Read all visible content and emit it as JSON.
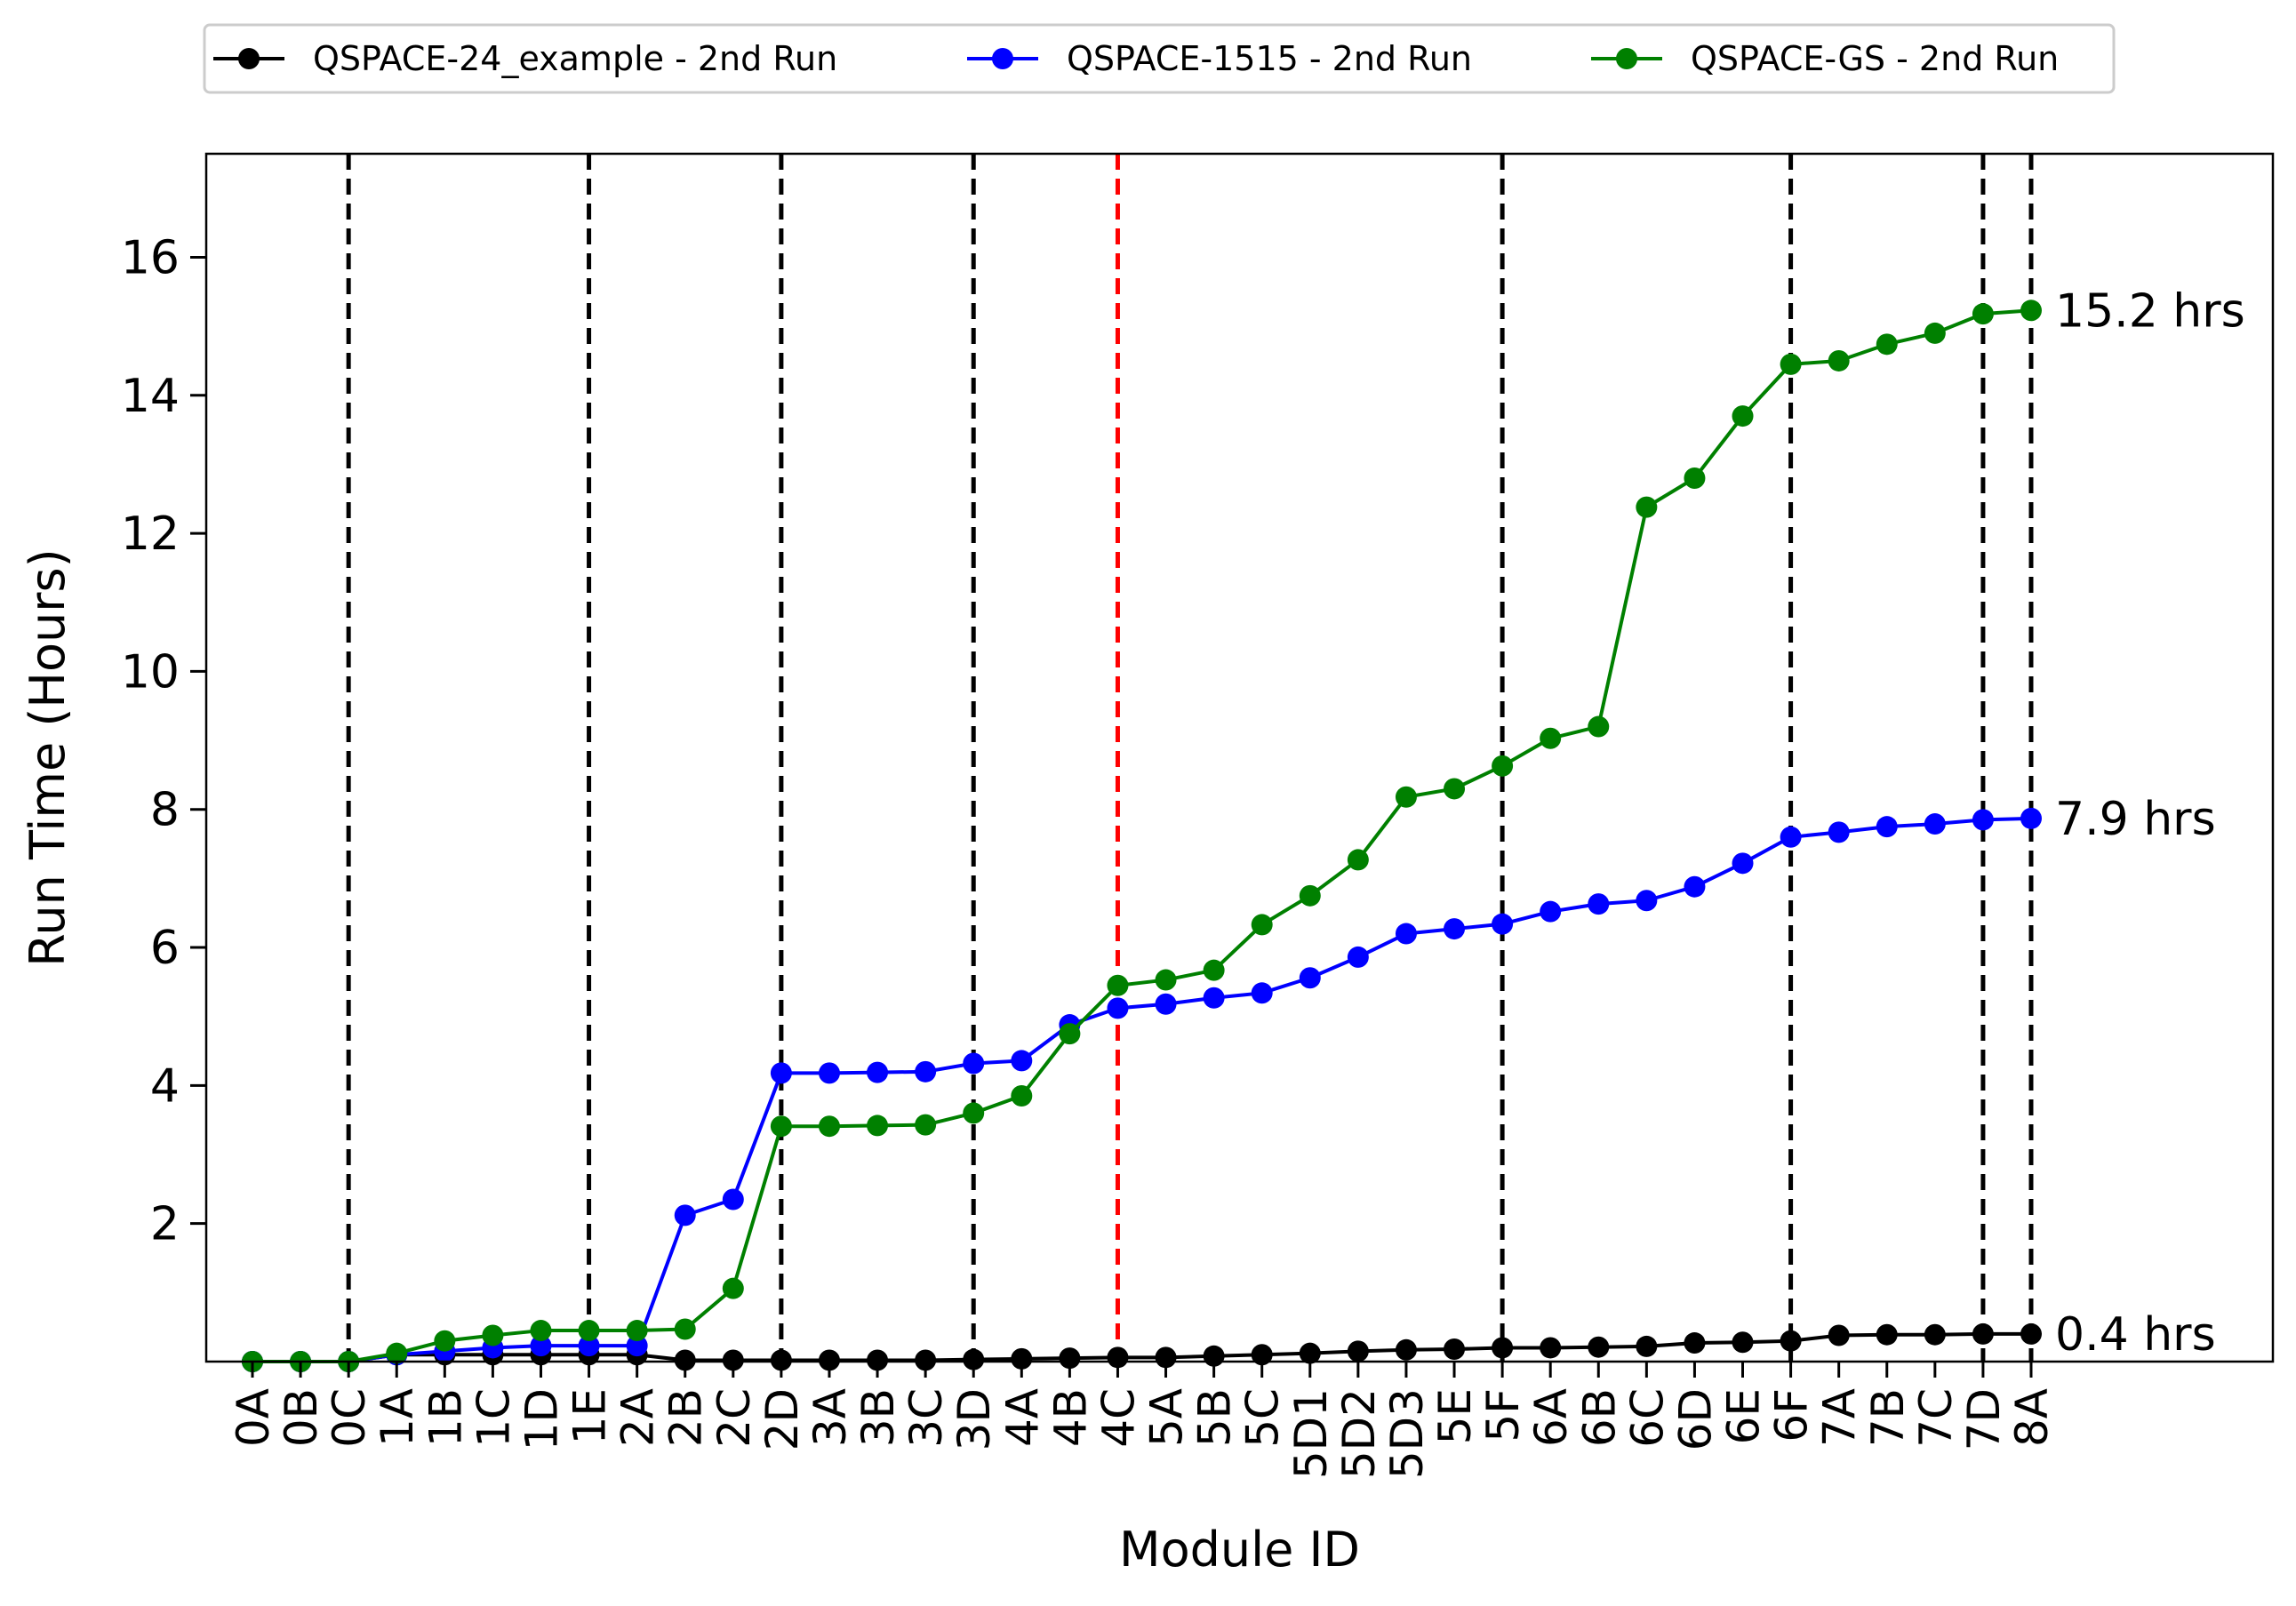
{
  "chart_data": {
    "type": "line",
    "title": "",
    "xlabel": "Module ID",
    "ylabel": "Run Time (Hours)",
    "ylim": [
      0,
      17.5
    ],
    "yticks": [
      2,
      4,
      6,
      8,
      10,
      12,
      14,
      16
    ],
    "grid": false,
    "legend_position": "top",
    "categories": [
      "0A",
      "0B",
      "0C",
      "1A",
      "1B",
      "1C",
      "1D",
      "1E",
      "2A",
      "2B",
      "2C",
      "2D",
      "3A",
      "3B",
      "3C",
      "3D",
      "4A",
      "4B",
      "4C",
      "5A",
      "5B",
      "5C",
      "5D1",
      "5D2",
      "5D3",
      "5E",
      "5F",
      "6A",
      "6B",
      "6C",
      "6D",
      "6E",
      "6F",
      "7A",
      "7B",
      "7C",
      "7D",
      "8A"
    ],
    "series": [
      {
        "name": "QSPACE-24_example - 2nd Run",
        "color": "#000000",
        "values": [
          0,
          0,
          0,
          0.1,
          0.1,
          0.1,
          0.1,
          0.1,
          0.1,
          0.02,
          0.02,
          0.02,
          0.02,
          0.02,
          0.02,
          0.03,
          0.04,
          0.05,
          0.06,
          0.06,
          0.08,
          0.1,
          0.12,
          0.15,
          0.17,
          0.18,
          0.2,
          0.2,
          0.21,
          0.22,
          0.27,
          0.28,
          0.3,
          0.38,
          0.39,
          0.39,
          0.4,
          0.4
        ]
      },
      {
        "name": "QSPACE-1515 - 2nd Run",
        "color": "#0000ff",
        "values": [
          0,
          0,
          0,
          0.1,
          0.15,
          0.2,
          0.23,
          0.23,
          0.23,
          2.12,
          2.35,
          4.18,
          4.18,
          4.19,
          4.2,
          4.32,
          4.36,
          4.88,
          5.12,
          5.18,
          5.27,
          5.34,
          5.56,
          5.86,
          6.2,
          6.27,
          6.34,
          6.52,
          6.63,
          6.68,
          6.88,
          7.22,
          7.6,
          7.67,
          7.75,
          7.79,
          7.85,
          7.87
        ]
      },
      {
        "name": "QSPACE-GS - 2nd Run",
        "color": "#008000",
        "values": [
          0,
          0,
          0,
          0.12,
          0.3,
          0.38,
          0.45,
          0.45,
          0.45,
          0.47,
          1.06,
          3.41,
          3.41,
          3.42,
          3.43,
          3.6,
          3.85,
          4.75,
          5.45,
          5.53,
          5.67,
          6.33,
          6.75,
          7.27,
          8.18,
          8.3,
          8.63,
          9.03,
          9.2,
          12.38,
          12.8,
          13.7,
          14.45,
          14.5,
          14.74,
          14.9,
          15.18,
          15.23
        ]
      }
    ],
    "vertical_lines": [
      {
        "at": "0C",
        "color": "#000000"
      },
      {
        "at": "1E",
        "color": "#000000"
      },
      {
        "at": "2D",
        "color": "#000000"
      },
      {
        "at": "3D",
        "color": "#000000"
      },
      {
        "at": "4C",
        "color": "#ff0000"
      },
      {
        "at": "5F",
        "color": "#000000"
      },
      {
        "at": "6F",
        "color": "#000000"
      },
      {
        "at": "7D",
        "color": "#000000"
      },
      {
        "at": "8A",
        "color": "#000000"
      }
    ],
    "annotations": [
      {
        "text": "15.2 hrs",
        "y": 15.23
      },
      {
        "text": "7.9 hrs",
        "y": 7.87
      },
      {
        "text": "0.4 hrs",
        "y": 0.4
      }
    ]
  }
}
